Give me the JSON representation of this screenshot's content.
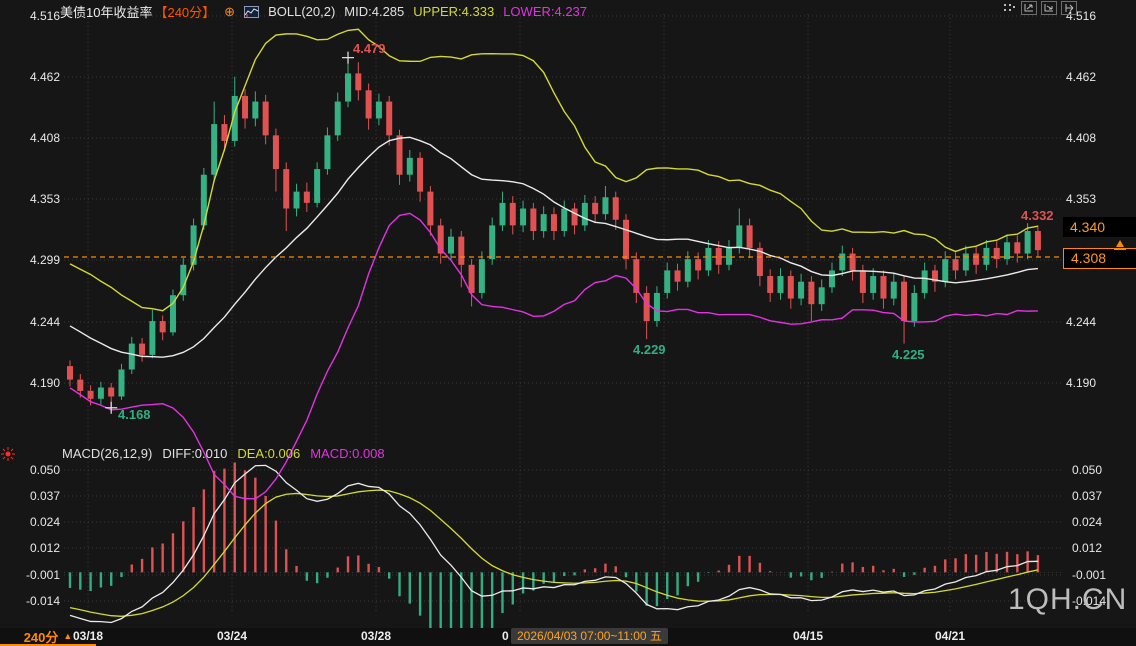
{
  "header": {
    "title": "美债10年收益率",
    "period": "【240分】",
    "compare_glyph": "⊕",
    "boll": "BOLL(20,2)",
    "mid": "MID:4.285",
    "upper": "UPPER:4.333",
    "lower": "LOWER:4.237"
  },
  "macd_header": {
    "name": "MACD(26,12,9)",
    "diff": "DIFF:0.010",
    "dea": "DEA:0.006",
    "macd": "MACD:0.008"
  },
  "axes": {
    "main": [
      "4.516",
      "4.462",
      "4.408",
      "4.353",
      "4.299",
      "4.244",
      "4.190"
    ],
    "main_right": [
      "4.516",
      "4.462",
      "4.408",
      "4.353",
      "4.244",
      "4.190"
    ],
    "macd": [
      "0.050",
      "0.037",
      "0.024",
      "0.012",
      "-0.001",
      "-0.014"
    ]
  },
  "price_labels": {
    "upper_tag": "4.340",
    "current": "4.308"
  },
  "annotations": {
    "high": "4.479",
    "low": "4.168",
    "swing_low_1": "4.229",
    "swing_low_2": "4.225",
    "recent_high": "4.332"
  },
  "bottom": {
    "tab": "240分",
    "tab_arrow": "▲",
    "t1": "03/18",
    "t2": "03/24",
    "t3": "03/28",
    "t4": "04/15",
    "t5": "04/21",
    "partial": "0",
    "datetime": "2026/04/03 07:00~11:00 五"
  },
  "watermark": "1QH.CN",
  "colors": {
    "up": "#35b183",
    "down": "#e05252",
    "boll_upper": "#d4d832",
    "boll_mid": "#ebebeb",
    "boll_lower": "#e331e3",
    "hist_pos": "#e05252",
    "hist_neg": "#2fae82",
    "diff_line": "#ebebeb",
    "dea_line": "#d4d832",
    "accent_orange": "#ff8a00",
    "grid": "#3a3a3a"
  },
  "chart_data": {
    "type": "candlestick",
    "symbol": "美债10年收益率",
    "period": "240分",
    "indicators": {
      "boll": [
        20,
        2
      ],
      "macd": [
        26,
        12,
        9
      ]
    },
    "boll_readout": {
      "mid": 4.285,
      "upper": 4.333,
      "lower": 4.237
    },
    "macd_readout": {
      "diff": 0.01,
      "dea": 0.006,
      "macd": 0.008
    },
    "y_axis_main": [
      4.516,
      4.462,
      4.408,
      4.353,
      4.299,
      4.244,
      4.19
    ],
    "y_axis_macd": [
      0.05,
      0.037,
      0.024,
      0.012,
      -0.001,
      -0.014
    ],
    "x_tick_labels": [
      "03/18",
      "03/24",
      "03/28",
      "04/15",
      "04/21"
    ],
    "last_bar_datetime": "2026/04/03 07:00~11:00 五",
    "current_price": 4.308,
    "upper_tag_price": 4.34,
    "marked_points": {
      "high": 4.479,
      "low": 4.168,
      "swing_low_1": 4.229,
      "swing_low_2": 4.225,
      "recent_high": 4.332
    },
    "lead_in_closes": [
      4.29,
      4.285,
      4.278,
      4.272,
      4.266,
      4.26,
      4.255,
      4.25,
      4.245,
      4.24,
      4.236,
      4.232,
      4.228,
      4.224,
      4.22,
      4.216,
      4.212,
      4.208,
      4.204
    ],
    "candles": [
      [
        4.205,
        4.193,
        4.187,
        4.21
      ],
      [
        4.193,
        4.183,
        4.177,
        4.198
      ],
      [
        4.183,
        4.176,
        4.17,
        4.188
      ],
      [
        4.176,
        4.186,
        4.171,
        4.191
      ],
      [
        4.186,
        4.178,
        4.168,
        4.19
      ],
      [
        4.178,
        4.202,
        4.175,
        4.207
      ],
      [
        4.202,
        4.225,
        4.198,
        4.231
      ],
      [
        4.225,
        4.215,
        4.209,
        4.23
      ],
      [
        4.215,
        4.245,
        4.212,
        4.255
      ],
      [
        4.245,
        4.235,
        4.228,
        4.25
      ],
      [
        4.235,
        4.268,
        4.232,
        4.273
      ],
      [
        4.268,
        4.295,
        4.263,
        4.301
      ],
      [
        4.295,
        4.33,
        4.29,
        4.336
      ],
      [
        4.33,
        4.375,
        4.326,
        4.381
      ],
      [
        4.375,
        4.42,
        4.37,
        4.44
      ],
      [
        4.42,
        4.405,
        4.396,
        4.428
      ],
      [
        4.405,
        4.445,
        4.4,
        4.462
      ],
      [
        4.445,
        4.425,
        4.416,
        4.451
      ],
      [
        4.425,
        4.44,
        4.418,
        4.449
      ],
      [
        4.44,
        4.41,
        4.402,
        4.446
      ],
      [
        4.41,
        4.38,
        4.36,
        4.416
      ],
      [
        4.38,
        4.345,
        4.325,
        4.386
      ],
      [
        4.345,
        4.36,
        4.338,
        4.367
      ],
      [
        4.36,
        4.35,
        4.342,
        4.368
      ],
      [
        4.35,
        4.38,
        4.346,
        4.386
      ],
      [
        4.38,
        4.41,
        4.375,
        4.417
      ],
      [
        4.41,
        4.44,
        4.405,
        4.448
      ],
      [
        4.44,
        4.465,
        4.435,
        4.479
      ],
      [
        4.465,
        4.45,
        4.441,
        4.475
      ],
      [
        4.45,
        4.425,
        4.415,
        4.456
      ],
      [
        4.425,
        4.44,
        4.419,
        4.447
      ],
      [
        4.44,
        4.41,
        4.401,
        4.445
      ],
      [
        4.41,
        4.375,
        4.366,
        4.415
      ],
      [
        4.375,
        4.39,
        4.369,
        4.397
      ],
      [
        4.39,
        4.36,
        4.351,
        4.395
      ],
      [
        4.36,
        4.33,
        4.321,
        4.365
      ],
      [
        4.33,
        4.305,
        4.296,
        4.336
      ],
      [
        4.305,
        4.32,
        4.299,
        4.327
      ],
      [
        4.32,
        4.295,
        4.275,
        4.325
      ],
      [
        4.295,
        4.27,
        4.258,
        4.3
      ],
      [
        4.27,
        4.3,
        4.265,
        4.307
      ],
      [
        4.3,
        4.33,
        4.295,
        4.337
      ],
      [
        4.33,
        4.35,
        4.325,
        4.36
      ],
      [
        4.35,
        4.33,
        4.322,
        4.356
      ],
      [
        4.33,
        4.345,
        4.324,
        4.352
      ],
      [
        4.345,
        4.325,
        4.317,
        4.35
      ],
      [
        4.325,
        4.34,
        4.319,
        4.347
      ],
      [
        4.34,
        4.325,
        4.317,
        4.346
      ],
      [
        4.325,
        4.345,
        4.32,
        4.352
      ],
      [
        4.345,
        4.33,
        4.322,
        4.35
      ],
      [
        4.33,
        4.35,
        4.325,
        4.357
      ],
      [
        4.35,
        4.34,
        4.332,
        4.356
      ],
      [
        4.34,
        4.355,
        4.335,
        4.365
      ],
      [
        4.355,
        4.335,
        4.326,
        4.36
      ],
      [
        4.335,
        4.3,
        4.291,
        4.34
      ],
      [
        4.3,
        4.27,
        4.261,
        4.306
      ],
      [
        4.27,
        4.245,
        4.229,
        4.276
      ],
      [
        4.245,
        4.27,
        4.24,
        4.276
      ],
      [
        4.27,
        4.29,
        4.265,
        4.297
      ],
      [
        4.29,
        4.28,
        4.272,
        4.296
      ],
      [
        4.28,
        4.3,
        4.275,
        4.307
      ],
      [
        4.3,
        4.29,
        4.282,
        4.306
      ],
      [
        4.29,
        4.31,
        4.285,
        4.317
      ],
      [
        4.31,
        4.295,
        4.287,
        4.316
      ],
      [
        4.295,
        4.31,
        4.29,
        4.317
      ],
      [
        4.31,
        4.33,
        4.305,
        4.345
      ],
      [
        4.33,
        4.31,
        4.301,
        4.336
      ],
      [
        4.31,
        4.285,
        4.276,
        4.315
      ],
      [
        4.285,
        4.27,
        4.262,
        4.291
      ],
      [
        4.27,
        4.285,
        4.264,
        4.292
      ],
      [
        4.285,
        4.265,
        4.256,
        4.29
      ],
      [
        4.265,
        4.28,
        4.259,
        4.287
      ],
      [
        4.28,
        4.26,
        4.245,
        4.285
      ],
      [
        4.26,
        4.275,
        4.254,
        4.282
      ],
      [
        4.275,
        4.29,
        4.27,
        4.297
      ],
      [
        4.29,
        4.305,
        4.285,
        4.312
      ],
      [
        4.305,
        4.29,
        4.281,
        4.31
      ],
      [
        4.29,
        4.27,
        4.261,
        4.295
      ],
      [
        4.27,
        4.285,
        4.264,
        4.292
      ],
      [
        4.285,
        4.265,
        4.256,
        4.29
      ],
      [
        4.265,
        4.28,
        4.259,
        4.287
      ],
      [
        4.28,
        4.245,
        4.225,
        4.285
      ],
      [
        4.245,
        4.27,
        4.24,
        4.277
      ],
      [
        4.27,
        4.29,
        4.265,
        4.297
      ],
      [
        4.29,
        4.28,
        4.271,
        4.295
      ],
      [
        4.28,
        4.3,
        4.275,
        4.307
      ],
      [
        4.3,
        4.29,
        4.282,
        4.306
      ],
      [
        4.29,
        4.305,
        4.285,
        4.312
      ],
      [
        4.305,
        4.295,
        4.287,
        4.311
      ],
      [
        4.295,
        4.31,
        4.29,
        4.317
      ],
      [
        4.31,
        4.3,
        4.292,
        4.316
      ],
      [
        4.3,
        4.315,
        4.295,
        4.322
      ],
      [
        4.315,
        4.305,
        4.297,
        4.321
      ],
      [
        4.305,
        4.325,
        4.3,
        4.332
      ],
      [
        4.325,
        4.308,
        4.302,
        4.33
      ]
    ]
  }
}
